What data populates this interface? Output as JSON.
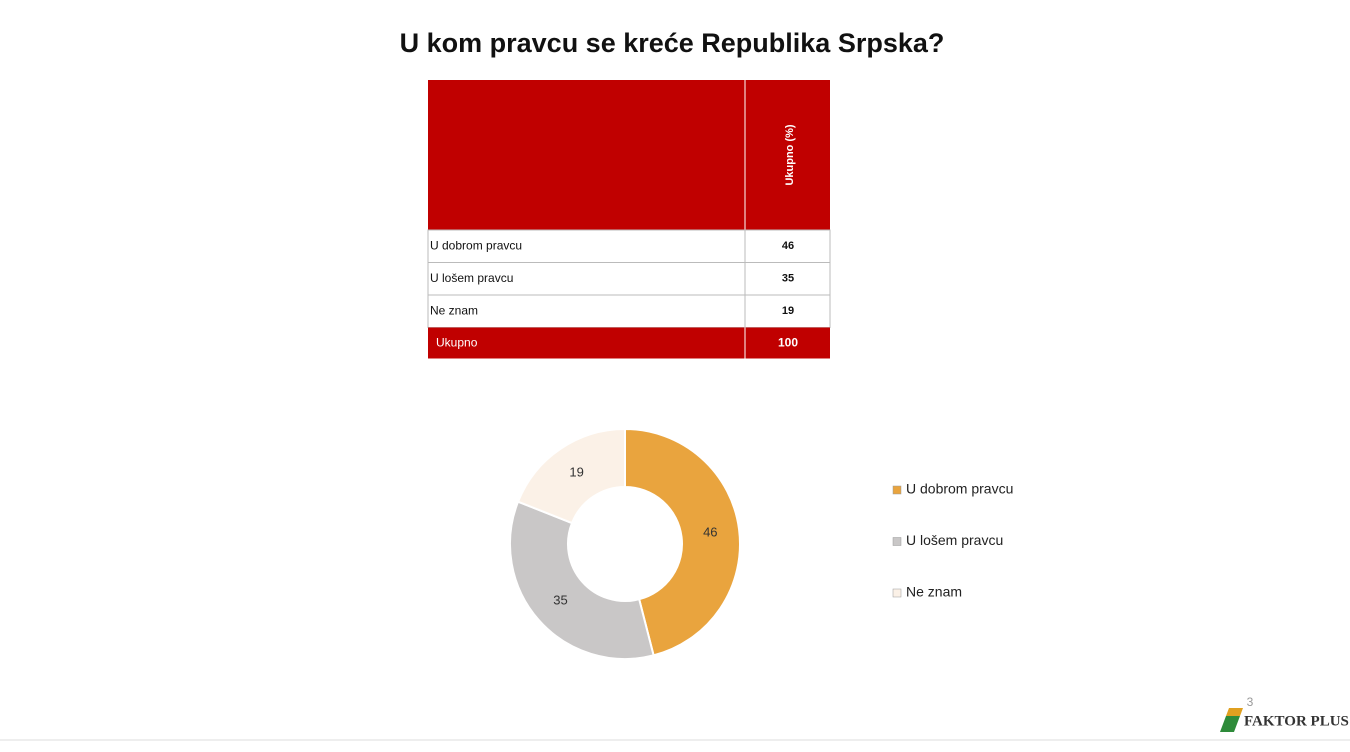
{
  "title": "U kom pravcu se kreće Republika Srpska?",
  "table": {
    "header": "Ukupno (%)",
    "rows": [
      [
        "U dobrom pravcu",
        46
      ],
      [
        "U lošem pravcu",
        35
      ],
      [
        "Ne znam",
        19
      ]
    ],
    "total": [
      "Ukupno",
      100
    ]
  },
  "chart_data": {
    "type": "donut",
    "categories": [
      "U dobrom pravcu",
      "U lošem pravcu",
      "Ne znam"
    ],
    "values": [
      46,
      35,
      19
    ],
    "colors": [
      "#E9A43E",
      "#C9C7C7",
      "#FBF1E7"
    ]
  },
  "page_number": "3",
  "logo": "FAKTOR PLUS"
}
